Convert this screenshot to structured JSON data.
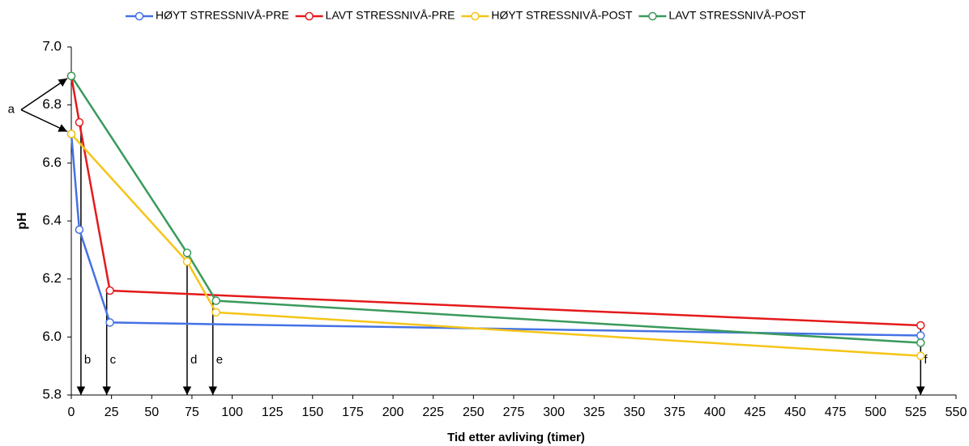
{
  "chart_data": {
    "type": "line",
    "xlabel": "Tid etter avliving (timer)",
    "ylabel": "pH",
    "xlim": [
      0,
      550
    ],
    "xticks": [
      0,
      25,
      50,
      75,
      100,
      125,
      150,
      175,
      200,
      225,
      250,
      275,
      300,
      325,
      350,
      375,
      400,
      425,
      450,
      475,
      500,
      525,
      550
    ],
    "ylim": [
      5.8,
      7.0
    ],
    "yticks": [
      5.8,
      {
        "value": 6.0,
        "label": "6.0"
      },
      6.2,
      6.4,
      6.6,
      6.8,
      {
        "value": 7.0,
        "label": "7.0"
      }
    ],
    "legend": "top",
    "series": [
      {
        "name": "HØYT STRESSNIVÅ-PRE",
        "color": "#4472e4",
        "x": [
          0,
          5,
          24,
          528
        ],
        "values": [
          6.7,
          6.37,
          6.05,
          6.005
        ]
      },
      {
        "name": "LAVT STRESSNIVÅ-PRE",
        "color": "#e41a1c",
        "x": [
          0,
          5,
          24,
          528
        ],
        "values": [
          6.9,
          6.74,
          6.16,
          6.04
        ]
      },
      {
        "name": "HØYT STRESSNIVÅ-POST",
        "color": "#f5c518",
        "x": [
          0,
          72,
          90,
          528
        ],
        "values": [
          6.7,
          6.26,
          6.085,
          5.935
        ]
      },
      {
        "name": "LAVT STRESSNIVÅ-POST",
        "color": "#3a9a5b",
        "x": [
          0,
          72,
          90,
          528
        ],
        "values": [
          6.9,
          6.29,
          6.125,
          5.98
        ]
      }
    ],
    "annotations": [
      {
        "text": "a",
        "targets": [
          [
            0,
            6.9
          ],
          [
            0,
            6.7
          ]
        ]
      },
      {
        "text": "b",
        "x": 6,
        "y": 6.74
      },
      {
        "text": "c",
        "x": 22,
        "y": 6.16
      },
      {
        "text": "d",
        "x": 72,
        "y": 6.29
      },
      {
        "text": "e",
        "x": 88,
        "y": 6.12
      },
      {
        "text": "f",
        "x": 528,
        "y": 6.04
      }
    ]
  }
}
